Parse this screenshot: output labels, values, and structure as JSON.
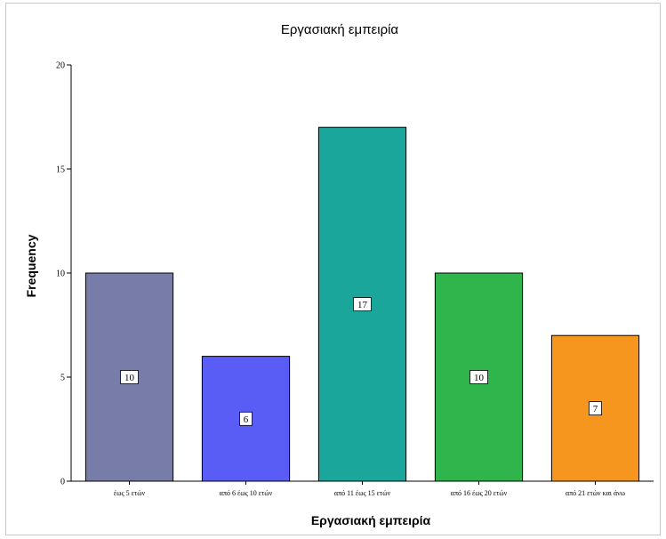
{
  "chart_data": {
    "type": "bar",
    "title": "Εργασιακή εμπειρία",
    "xlabel": "Εργασιακή εμπειρία",
    "ylabel": "Frequency",
    "categories": [
      "έως 5 ετών",
      "από 6 έως 10 ετών",
      "από 11 έως 15 ετών",
      "από 16 έως 20 ετών",
      "από 21 ετών και άνω"
    ],
    "values": [
      10,
      6,
      17,
      10,
      7
    ],
    "colors": [
      "#787ca8",
      "#5a5cf6",
      "#1aa69a",
      "#30b44c",
      "#f7961e"
    ],
    "ylim": [
      0,
      20
    ],
    "yticks": [
      0,
      5,
      10,
      15,
      20
    ],
    "grid": false,
    "data_labels": true
  }
}
